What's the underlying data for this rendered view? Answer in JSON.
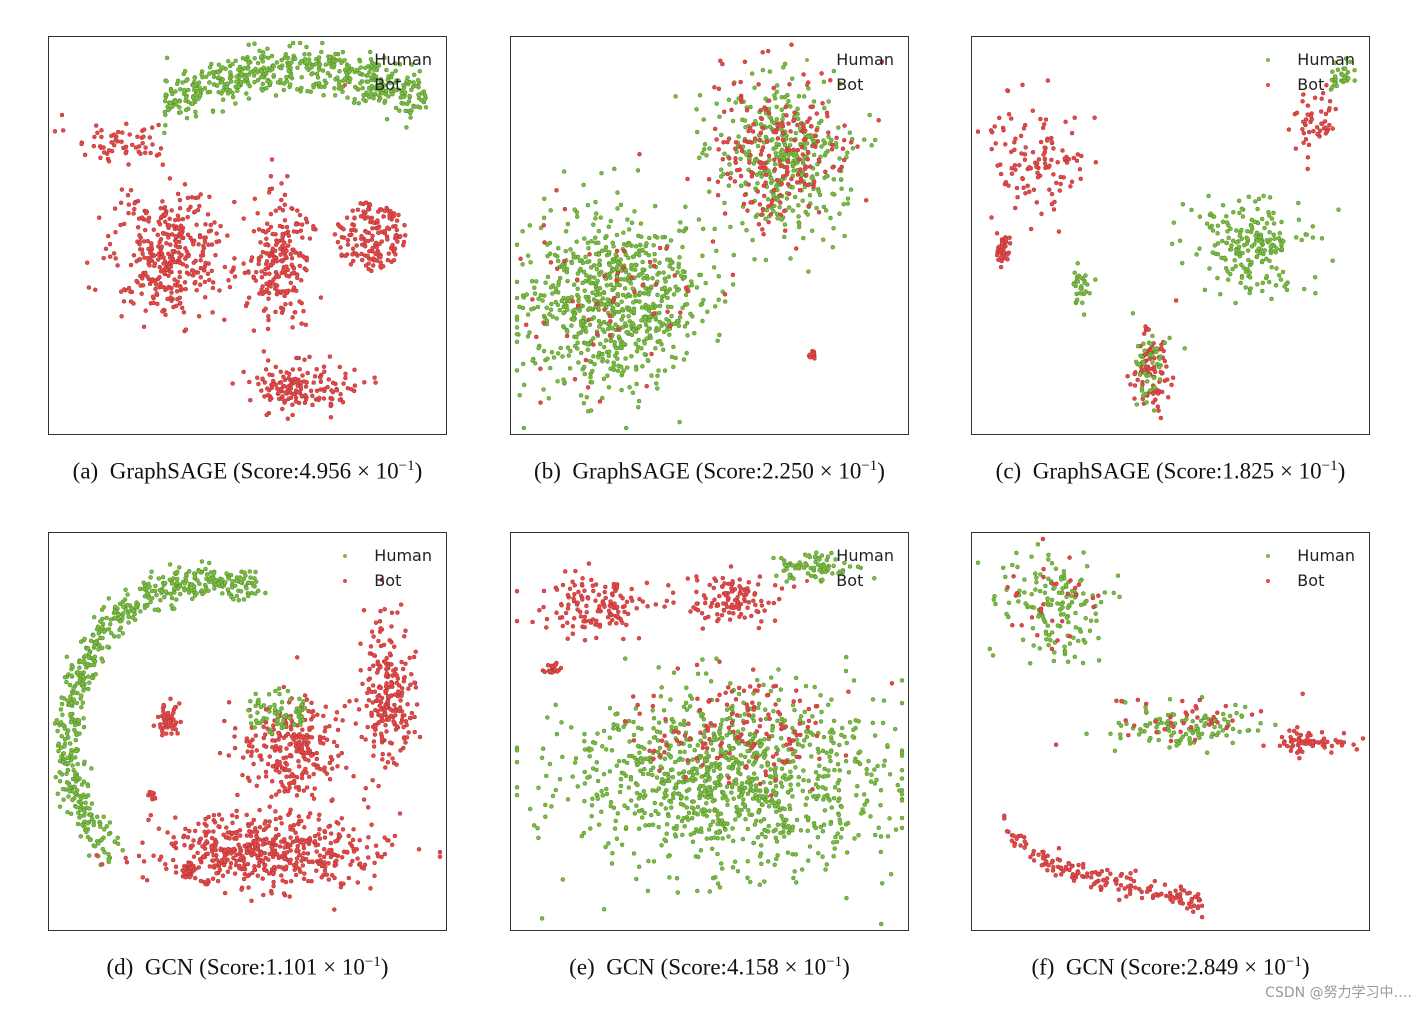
{
  "colors": {
    "human": "#7cbd3f",
    "human_edge": "#4f8a2a",
    "bot": "#e34a4a",
    "bot_edge": "#b33030"
  },
  "chart_data": [
    {
      "type": "scatter",
      "id": "a",
      "caption_label": "(a)",
      "model": "GraphSAGE",
      "score_text": "Score:4.956",
      "exponent": "−1",
      "legend": [
        "Human",
        "Bot"
      ],
      "clusters": [
        {
          "class": "human",
          "cx": 0.62,
          "cy": 0.16,
          "rx": 0.33,
          "ry": 0.08,
          "n": 520,
          "shape": "arc"
        },
        {
          "class": "bot",
          "cx": 0.18,
          "cy": 0.26,
          "rx": 0.13,
          "ry": 0.05,
          "n": 60,
          "shape": "ellipse"
        },
        {
          "class": "bot",
          "cx": 0.3,
          "cy": 0.55,
          "rx": 0.14,
          "ry": 0.16,
          "n": 360,
          "shape": "ellipse"
        },
        {
          "class": "bot",
          "cx": 0.58,
          "cy": 0.56,
          "rx": 0.08,
          "ry": 0.16,
          "n": 220,
          "shape": "ellipse"
        },
        {
          "class": "bot",
          "cx": 0.81,
          "cy": 0.5,
          "rx": 0.09,
          "ry": 0.09,
          "n": 160,
          "shape": "ring"
        },
        {
          "class": "bot",
          "cx": 0.63,
          "cy": 0.88,
          "rx": 0.14,
          "ry": 0.06,
          "n": 160,
          "shape": "ellipse"
        }
      ]
    },
    {
      "type": "scatter",
      "id": "b",
      "caption_label": "(b)",
      "model": "GraphSAGE",
      "score_text": "Score:2.250",
      "exponent": "−1",
      "legend": [
        "Human",
        "Bot"
      ],
      "clusters": [
        {
          "class": "human",
          "cx": 0.68,
          "cy": 0.3,
          "rx": 0.16,
          "ry": 0.2,
          "n": 380,
          "shape": "ellipse"
        },
        {
          "class": "bot",
          "cx": 0.68,
          "cy": 0.3,
          "rx": 0.18,
          "ry": 0.22,
          "n": 220,
          "shape": "ellipse"
        },
        {
          "class": "human",
          "cx": 0.25,
          "cy": 0.67,
          "rx": 0.22,
          "ry": 0.22,
          "n": 760,
          "shape": "ellipse"
        },
        {
          "class": "bot",
          "cx": 0.25,
          "cy": 0.67,
          "rx": 0.24,
          "ry": 0.24,
          "n": 60,
          "shape": "ellipse"
        },
        {
          "class": "bot",
          "cx": 0.76,
          "cy": 0.8,
          "rx": 0.01,
          "ry": 0.01,
          "n": 14,
          "shape": "ellipse"
        }
      ]
    },
    {
      "type": "scatter",
      "id": "c",
      "caption_label": "(c)",
      "model": "GraphSAGE",
      "score_text": "Score:1.825",
      "exponent": "−1",
      "legend": [
        "Human",
        "Bot"
      ],
      "clusters": [
        {
          "class": "bot",
          "cx": 0.17,
          "cy": 0.3,
          "rx": 0.12,
          "ry": 0.14,
          "n": 120,
          "shape": "ellipse"
        },
        {
          "class": "bot",
          "cx": 0.08,
          "cy": 0.53,
          "rx": 0.02,
          "ry": 0.04,
          "n": 40,
          "shape": "ellipse"
        },
        {
          "class": "bot",
          "cx": 0.86,
          "cy": 0.2,
          "rx": 0.07,
          "ry": 0.08,
          "n": 50,
          "shape": "ellipse"
        },
        {
          "class": "human",
          "cx": 0.93,
          "cy": 0.1,
          "rx": 0.03,
          "ry": 0.05,
          "n": 30,
          "shape": "ellipse"
        },
        {
          "class": "human",
          "cx": 0.7,
          "cy": 0.53,
          "rx": 0.14,
          "ry": 0.11,
          "n": 210,
          "shape": "ellipse"
        },
        {
          "class": "human",
          "cx": 0.27,
          "cy": 0.63,
          "rx": 0.03,
          "ry": 0.05,
          "n": 30,
          "shape": "ellipse"
        },
        {
          "class": "bot",
          "cx": 0.45,
          "cy": 0.83,
          "rx": 0.05,
          "ry": 0.11,
          "n": 90,
          "shape": "ellipse"
        },
        {
          "class": "human",
          "cx": 0.45,
          "cy": 0.83,
          "rx": 0.04,
          "ry": 0.1,
          "n": 50,
          "shape": "ellipse"
        }
      ]
    },
    {
      "type": "scatter",
      "id": "d",
      "caption_label": "(d)",
      "model": "GCN",
      "score_text": "Score:1.101",
      "exponent": "−1",
      "legend": [
        "Human",
        "Bot"
      ],
      "clusters": [
        {
          "class": "human",
          "cx": 0.4,
          "cy": 0.3,
          "rx": 0.35,
          "ry": 0.25,
          "n": 560,
          "shape": "arc2"
        },
        {
          "class": "bot",
          "cx": 0.85,
          "cy": 0.4,
          "rx": 0.07,
          "ry": 0.17,
          "n": 230,
          "shape": "ellipse"
        },
        {
          "class": "bot",
          "cx": 0.3,
          "cy": 0.47,
          "rx": 0.03,
          "ry": 0.04,
          "n": 50,
          "shape": "ellipse"
        },
        {
          "class": "bot",
          "cx": 0.62,
          "cy": 0.55,
          "rx": 0.14,
          "ry": 0.14,
          "n": 260,
          "shape": "ellipse"
        },
        {
          "class": "human",
          "cx": 0.57,
          "cy": 0.45,
          "rx": 0.08,
          "ry": 0.06,
          "n": 70,
          "shape": "ring"
        },
        {
          "class": "bot",
          "cx": 0.55,
          "cy": 0.8,
          "rx": 0.28,
          "ry": 0.09,
          "n": 520,
          "shape": "ellipse"
        },
        {
          "class": "bot",
          "cx": 0.35,
          "cy": 0.85,
          "rx": 0.02,
          "ry": 0.02,
          "n": 30,
          "shape": "ellipse"
        },
        {
          "class": "bot",
          "cx": 0.26,
          "cy": 0.66,
          "rx": 0.01,
          "ry": 0.01,
          "n": 12,
          "shape": "ellipse"
        }
      ]
    },
    {
      "type": "scatter",
      "id": "e",
      "caption_label": "(e)",
      "model": "GCN",
      "score_text": "Score:4.158",
      "exponent": "−1",
      "legend": [
        "Human",
        "Bot"
      ],
      "clusters": [
        {
          "class": "bot",
          "cx": 0.22,
          "cy": 0.18,
          "rx": 0.14,
          "ry": 0.07,
          "n": 140,
          "shape": "ellipse"
        },
        {
          "class": "bot",
          "cx": 0.55,
          "cy": 0.17,
          "rx": 0.12,
          "ry": 0.06,
          "n": 120,
          "shape": "ellipse"
        },
        {
          "class": "human",
          "cx": 0.75,
          "cy": 0.09,
          "rx": 0.1,
          "ry": 0.04,
          "n": 80,
          "shape": "ellipse"
        },
        {
          "class": "bot",
          "cx": 0.1,
          "cy": 0.34,
          "rx": 0.02,
          "ry": 0.02,
          "n": 25,
          "shape": "ellipse"
        },
        {
          "class": "human",
          "cx": 0.55,
          "cy": 0.62,
          "rx": 0.4,
          "ry": 0.22,
          "n": 1050,
          "shape": "ellipse"
        },
        {
          "class": "bot",
          "cx": 0.58,
          "cy": 0.48,
          "rx": 0.25,
          "ry": 0.15,
          "n": 150,
          "shape": "ellipse"
        }
      ]
    },
    {
      "type": "scatter",
      "id": "f",
      "caption_label": "(f)",
      "model": "GCN",
      "score_text": "Score:2.849",
      "exponent": "−1",
      "legend": [
        "Human",
        "Bot"
      ],
      "clusters": [
        {
          "class": "human",
          "cx": 0.2,
          "cy": 0.18,
          "rx": 0.12,
          "ry": 0.14,
          "n": 150,
          "shape": "ellipse"
        },
        {
          "class": "bot",
          "cx": 0.2,
          "cy": 0.18,
          "rx": 0.12,
          "ry": 0.14,
          "n": 30,
          "shape": "ellipse"
        },
        {
          "class": "human",
          "cx": 0.55,
          "cy": 0.49,
          "rx": 0.2,
          "ry": 0.06,
          "n": 110,
          "shape": "ellipse"
        },
        {
          "class": "bot",
          "cx": 0.55,
          "cy": 0.47,
          "rx": 0.2,
          "ry": 0.06,
          "n": 40,
          "shape": "ellipse"
        },
        {
          "class": "bot",
          "cx": 0.85,
          "cy": 0.53,
          "rx": 0.1,
          "ry": 0.03,
          "n": 70,
          "shape": "ellipse"
        },
        {
          "class": "bot",
          "cx": 0.33,
          "cy": 0.84,
          "rx": 0.25,
          "ry": 0.12,
          "n": 170,
          "shape": "arc3"
        }
      ]
    }
  ],
  "watermark": "CSDN @努力学习中…."
}
